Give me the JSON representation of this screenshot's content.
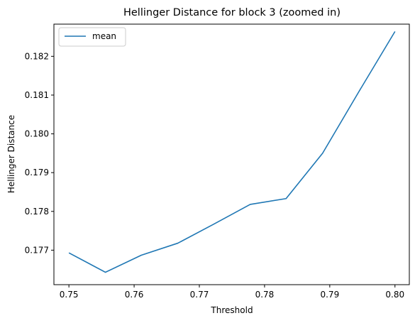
{
  "chart_data": {
    "type": "line",
    "title": "Hellinger Distance for block 3 (zoomed in)",
    "xlabel": "Threshold",
    "ylabel": "Hellinger Distance",
    "xlim": [
      0.7477,
      0.8022
    ],
    "ylim": [
      0.17611,
      0.18283
    ],
    "xticks": [
      0.75,
      0.76,
      0.77,
      0.78,
      0.79,
      0.8
    ],
    "xtick_labels": [
      "0.75",
      "0.76",
      "0.77",
      "0.78",
      "0.79",
      "0.80"
    ],
    "yticks": [
      0.177,
      0.178,
      0.179,
      0.18,
      0.181,
      0.182
    ],
    "ytick_labels": [
      "0.177",
      "0.178",
      "0.179",
      "0.180",
      "0.181",
      "0.182"
    ],
    "grid": false,
    "legend_position": "top-left",
    "series": [
      {
        "name": "mean",
        "color": "#1f77b4",
        "x": [
          0.75,
          0.7556,
          0.7611,
          0.7667,
          0.7722,
          0.7778,
          0.7833,
          0.7889,
          0.7944,
          0.8
        ],
        "y": [
          0.17693,
          0.17643,
          0.17687,
          0.17718,
          0.17767,
          0.17818,
          0.17833,
          0.1795,
          0.18107,
          0.18264
        ]
      }
    ]
  }
}
